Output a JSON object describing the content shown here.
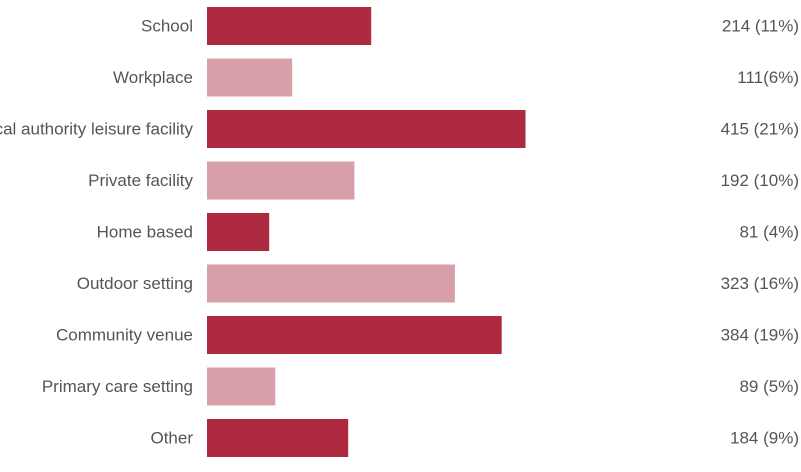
{
  "chart_data": {
    "type": "bar",
    "orientation": "horizontal",
    "categories": [
      "School",
      "Workplace",
      "Local authority leisure facility",
      "Private facility",
      "Home based",
      "Outdoor setting",
      "Community venue",
      "Primary care setting",
      "Other"
    ],
    "values": [
      214,
      111,
      415,
      192,
      81,
      323,
      384,
      89,
      184
    ],
    "value_labels": [
      "214 (11%)",
      "111(6%)",
      "415 (21%)",
      "192 (10%)",
      "81 (4%)",
      "323 (16%)",
      "384 (19%)",
      "89 (5%)",
      "184 (9%)"
    ],
    "colors": {
      "dark": "#ad2a41",
      "light": "#d89faa",
      "text": "#555555"
    },
    "title": "",
    "xlabel": "",
    "ylabel": "",
    "grid": false,
    "legend": "none"
  }
}
